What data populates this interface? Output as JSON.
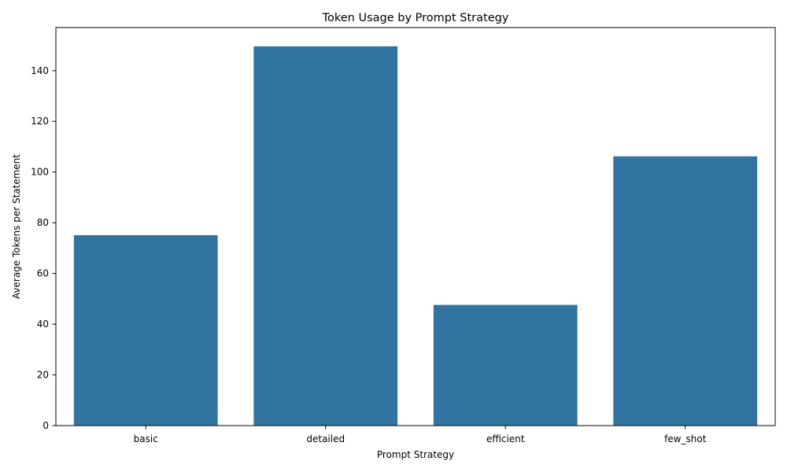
{
  "chart_data": {
    "type": "bar",
    "title": "Token Usage by Prompt Strategy",
    "xlabel": "Prompt Strategy",
    "ylabel": "Average Tokens per Statement",
    "categories": [
      "basic",
      "detailed",
      "efficient",
      "few_shot"
    ],
    "values": [
      75.1,
      149.6,
      47.6,
      106.2
    ],
    "ylim": [
      0,
      157
    ],
    "yticks": [
      0,
      20,
      40,
      60,
      80,
      100,
      120,
      140
    ],
    "grid": false,
    "legend": "none",
    "bar_color": "#3274a1",
    "axis_color": "#000000"
  }
}
